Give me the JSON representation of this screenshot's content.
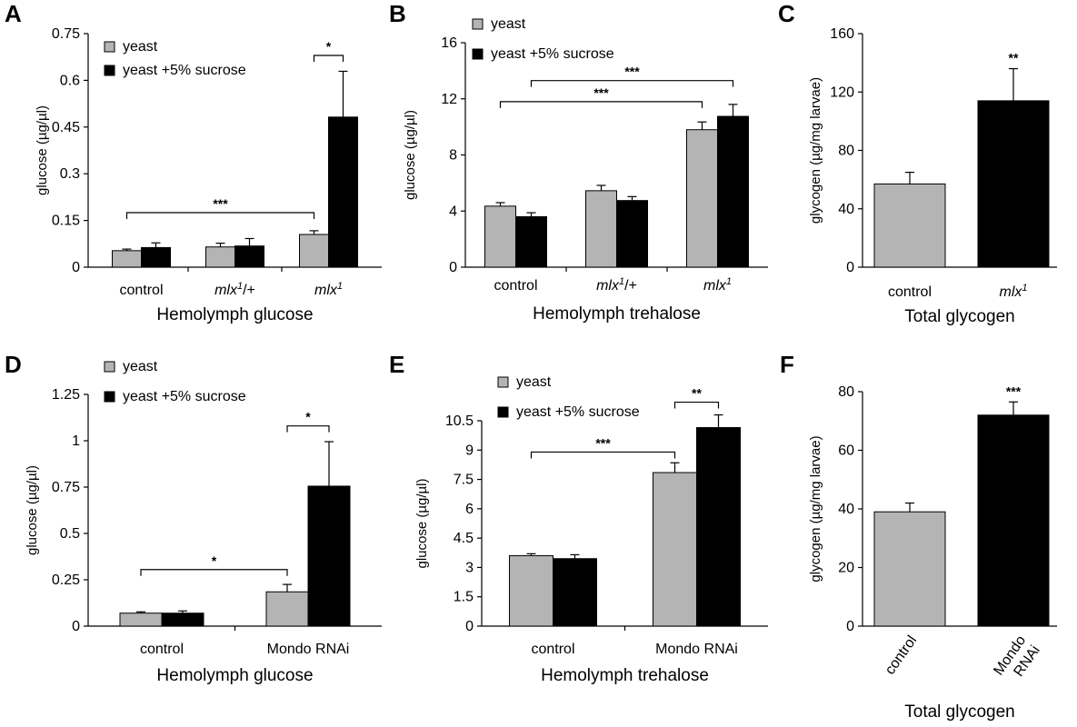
{
  "colors": {
    "yeast": "#b4b4b4",
    "sucrose": "#000000"
  },
  "chart_data": [
    {
      "panel": "A",
      "type": "bar",
      "ylabel": "glucose (µg/µl)",
      "xlabel": "Hemolymph glucose",
      "ylim": [
        0,
        0.75
      ],
      "yticks": [
        "0",
        "0.15",
        "0.3",
        "0.45",
        "0.6",
        "0.75"
      ],
      "categories": [
        {
          "text": "control",
          "italic": false
        },
        {
          "base": "mlx",
          "sup": "1",
          "suffix": "/+",
          "italic": true
        },
        {
          "base": "mlx",
          "sup": "1",
          "suffix": "",
          "italic": true
        }
      ],
      "legend": [
        "yeast",
        "yeast +5% sucrose"
      ],
      "series": [
        {
          "name": "yeast",
          "values": [
            0.053,
            0.065,
            0.105
          ],
          "errors": [
            0.005,
            0.012,
            0.012
          ]
        },
        {
          "name": "yeast +5% sucrose",
          "values": [
            0.063,
            0.068,
            0.482
          ],
          "errors": [
            0.015,
            0.024,
            0.147
          ]
        }
      ],
      "significance": [
        {
          "label": "***",
          "from": [
            0,
            0
          ],
          "to": [
            2,
            0
          ],
          "y": 0.175
        },
        {
          "label": "*",
          "from": [
            2,
            0
          ],
          "to": [
            2,
            1
          ],
          "y": 0.68
        }
      ]
    },
    {
      "panel": "B",
      "type": "bar",
      "ylabel": "glucose (µg/µl)",
      "xlabel": "Hemolymph trehalose",
      "ylim": [
        0,
        16
      ],
      "yticks": [
        "0",
        "4",
        "8",
        "12",
        "16"
      ],
      "categories": [
        {
          "text": "control",
          "italic": false
        },
        {
          "base": "mlx",
          "sup": "1",
          "suffix": "/+",
          "italic": true
        },
        {
          "base": "mlx",
          "sup": "1",
          "suffix": "",
          "italic": true
        }
      ],
      "legend": [
        "yeast",
        "yeast +5% sucrose"
      ],
      "series": [
        {
          "name": "yeast",
          "values": [
            4.35,
            5.45,
            9.8
          ],
          "errors": [
            0.25,
            0.38,
            0.55
          ]
        },
        {
          "name": "yeast +5% sucrose",
          "values": [
            3.6,
            4.75,
            10.75
          ],
          "errors": [
            0.28,
            0.28,
            0.85
          ]
        }
      ],
      "significance": [
        {
          "label": "***",
          "from": [
            0,
            0
          ],
          "to": [
            2,
            0
          ],
          "y": 11.8
        },
        {
          "label": "***",
          "from": [
            0,
            1
          ],
          "to": [
            2,
            1
          ],
          "y": 13.3
        }
      ]
    },
    {
      "panel": "C",
      "type": "bar",
      "ylabel": "glycogen (µg/mg larvae)",
      "xlabel": "Total glycogen",
      "ylim": [
        0,
        160
      ],
      "yticks": [
        "0",
        "40",
        "80",
        "120",
        "160"
      ],
      "categories": [
        {
          "text": "control",
          "italic": false
        },
        {
          "base": "mlx",
          "sup": "1",
          "suffix": "",
          "italic": true
        }
      ],
      "values": [
        57,
        114
      ],
      "errors": [
        8,
        22
      ],
      "bar_colors": [
        "yeast",
        "sucrose"
      ],
      "significance": [
        {
          "label": "**",
          "bar": 1
        }
      ]
    },
    {
      "panel": "D",
      "type": "bar",
      "ylabel": "glucose (µg/µl)",
      "xlabel": "Hemolymph glucose",
      "ylim": [
        0,
        1.25
      ],
      "yticks": [
        "0",
        "0.25",
        "0.5",
        "0.75",
        "1",
        "1.25"
      ],
      "categories": [
        {
          "text": "control",
          "italic": false
        },
        {
          "text": "Mondo RNAi",
          "italic": false
        }
      ],
      "legend": [
        "yeast",
        "yeast +5% sucrose"
      ],
      "series": [
        {
          "name": "yeast",
          "values": [
            0.07,
            0.185
          ],
          "errors": [
            0.007,
            0.04
          ]
        },
        {
          "name": "yeast +5% sucrose",
          "values": [
            0.07,
            0.755
          ],
          "errors": [
            0.012,
            0.24
          ]
        }
      ],
      "significance": [
        {
          "label": "*",
          "from": [
            0,
            0
          ],
          "to": [
            1,
            0
          ],
          "y": 0.305
        },
        {
          "label": "*",
          "from": [
            1,
            0
          ],
          "to": [
            1,
            1
          ],
          "y": 1.08
        }
      ]
    },
    {
      "panel": "E",
      "type": "bar",
      "ylabel": "glucose (µg/µl)",
      "xlabel": "Hemolymph trehalose",
      "ylim": [
        0,
        10.5
      ],
      "yticks": [
        "0",
        "1.5",
        "3",
        "4.5",
        "6",
        "7.5",
        "9",
        "10.5"
      ],
      "categories": [
        {
          "text": "control",
          "italic": false
        },
        {
          "text": "Mondo RNAi",
          "italic": false
        }
      ],
      "legend": [
        "yeast",
        "yeast +5% sucrose"
      ],
      "series": [
        {
          "name": "yeast",
          "values": [
            3.6,
            7.85
          ],
          "errors": [
            0.1,
            0.5
          ]
        },
        {
          "name": "yeast +5% sucrose",
          "values": [
            3.45,
            10.15
          ],
          "errors": [
            0.2,
            0.65
          ]
        }
      ],
      "significance": [
        {
          "label": "***",
          "from": [
            0,
            0
          ],
          "to": [
            1,
            0
          ],
          "y": 8.9
        },
        {
          "label": "**",
          "from": [
            1,
            0
          ],
          "to": [
            1,
            1
          ],
          "y": 11.45
        }
      ]
    },
    {
      "panel": "F",
      "type": "bar",
      "ylabel": "glycogen (µg/mg larvae)",
      "xlabel": "Total glycogen",
      "ylim": [
        0,
        80
      ],
      "yticks": [
        "0",
        "20",
        "40",
        "60",
        "80"
      ],
      "categories": [
        {
          "text": "control",
          "italic": false,
          "rotated": true
        },
        {
          "lines": [
            "Mondo",
            "RNAi"
          ],
          "italic": false,
          "rotated": true
        }
      ],
      "values": [
        39,
        72
      ],
      "errors": [
        3,
        4.5
      ],
      "bar_colors": [
        "yeast",
        "sucrose"
      ],
      "significance": [
        {
          "label": "***",
          "bar": 1
        }
      ]
    }
  ]
}
